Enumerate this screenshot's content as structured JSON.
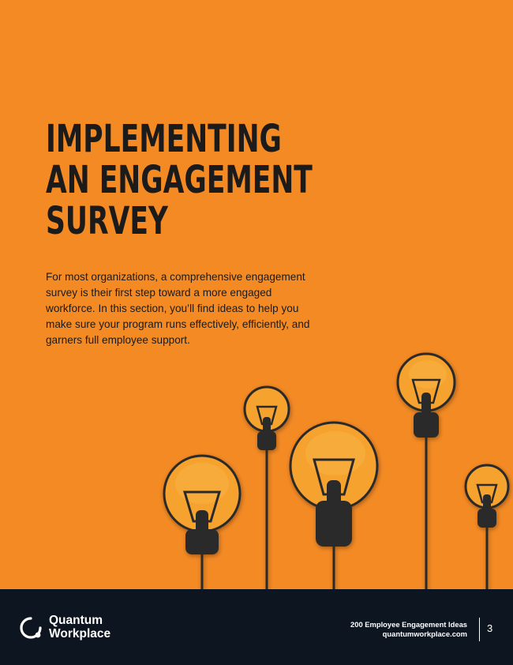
{
  "heading": {
    "line1": "IMPLEMENTING",
    "line2": "AN ENGAGEMENT",
    "line3": "SURVEY"
  },
  "intro_text": "For most organizations, a comprehensive engagement survey is their first step toward a more engaged workforce. In this section, you’ll find ideas to help you make sure your program runs effectively, efficiently, and garners full employee support.",
  "illustration": {
    "icon": "lightbulb-icon",
    "count": 5
  },
  "footer": {
    "logo_line1": "Quantum",
    "logo_line2": "Workplace",
    "doc_title": "200 Employee Engagement Ideas",
    "website": "quantumworkplace.com",
    "page_number": "3"
  },
  "colors": {
    "background": "#f48a24",
    "footer": "#0d1520",
    "bulb_glass": "#f6a22f",
    "ink": "#2a2a2a"
  }
}
